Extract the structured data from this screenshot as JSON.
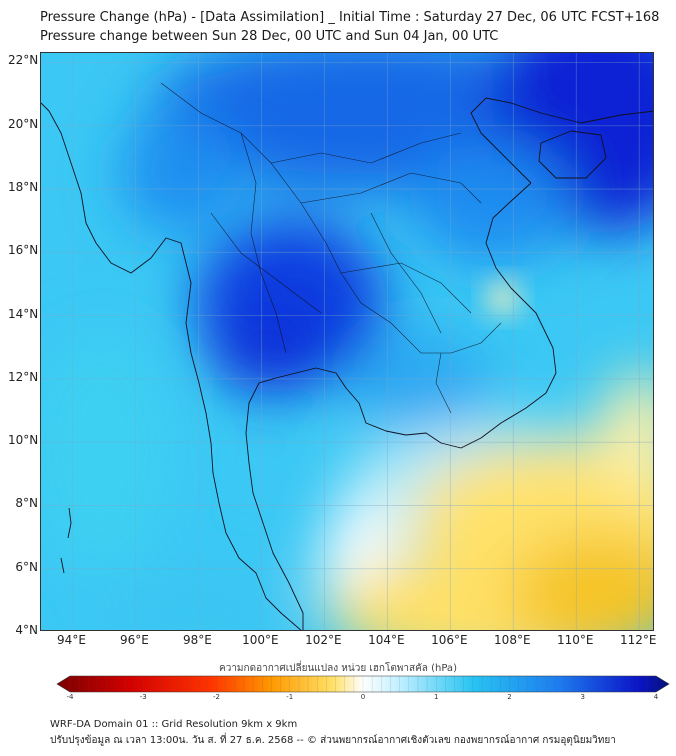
{
  "header": {
    "title": "Pressure Change (hPa) - [Data Assimilation] _ Initial Time : Saturday 27 Dec, 06 UTC FCST+168",
    "subtitle": "Pressure change between Sun 28 Dec, 00 UTC and Sun 04 Jan, 00 UTC"
  },
  "map": {
    "lat_labels": [
      "22°N",
      "20°N",
      "18°N",
      "16°N",
      "14°N",
      "12°N",
      "10°N",
      "8°N",
      "6°N",
      "4°N"
    ],
    "lon_labels": [
      "94°E",
      "96°E",
      "98°E",
      "100°E",
      "102°E",
      "104°E",
      "106°E",
      "108°E",
      "110°E",
      "112°E"
    ],
    "lat_range": [
      4,
      22.3
    ],
    "lon_range": [
      93,
      112.5
    ],
    "colors": {
      "neg_strong": "#0a1ad6",
      "neg_mid": "#1e88f0",
      "neg_light": "#27c4f2",
      "near_zero": "#ffffff",
      "pos_light": "#ffe066",
      "pos_mid": "#f7c21e"
    }
  },
  "colorbar": {
    "title": "ความกดอากาศเปลี่ยนแปลง หน่วย เฮกโตพาสคัล (hPa)",
    "ticks": [
      "-4",
      "-3",
      "-2",
      "-1",
      "0",
      "1",
      "2",
      "3",
      "4"
    ],
    "range": [
      -4,
      4
    ]
  },
  "footer": {
    "line1": "WRF-DA Domain 01 :: Grid Resolution 9km x 9km",
    "line2": "ปรับปรุงข้อมูล ณ เวลา 13:00น. วัน ส. ที่ 27 ธ.ค. 2568 -- © ส่วนพยากรณ์อากาศเชิงตัวเลข กองพยากรณ์อากาศ กรมอุตุนิยมวิทยา"
  }
}
